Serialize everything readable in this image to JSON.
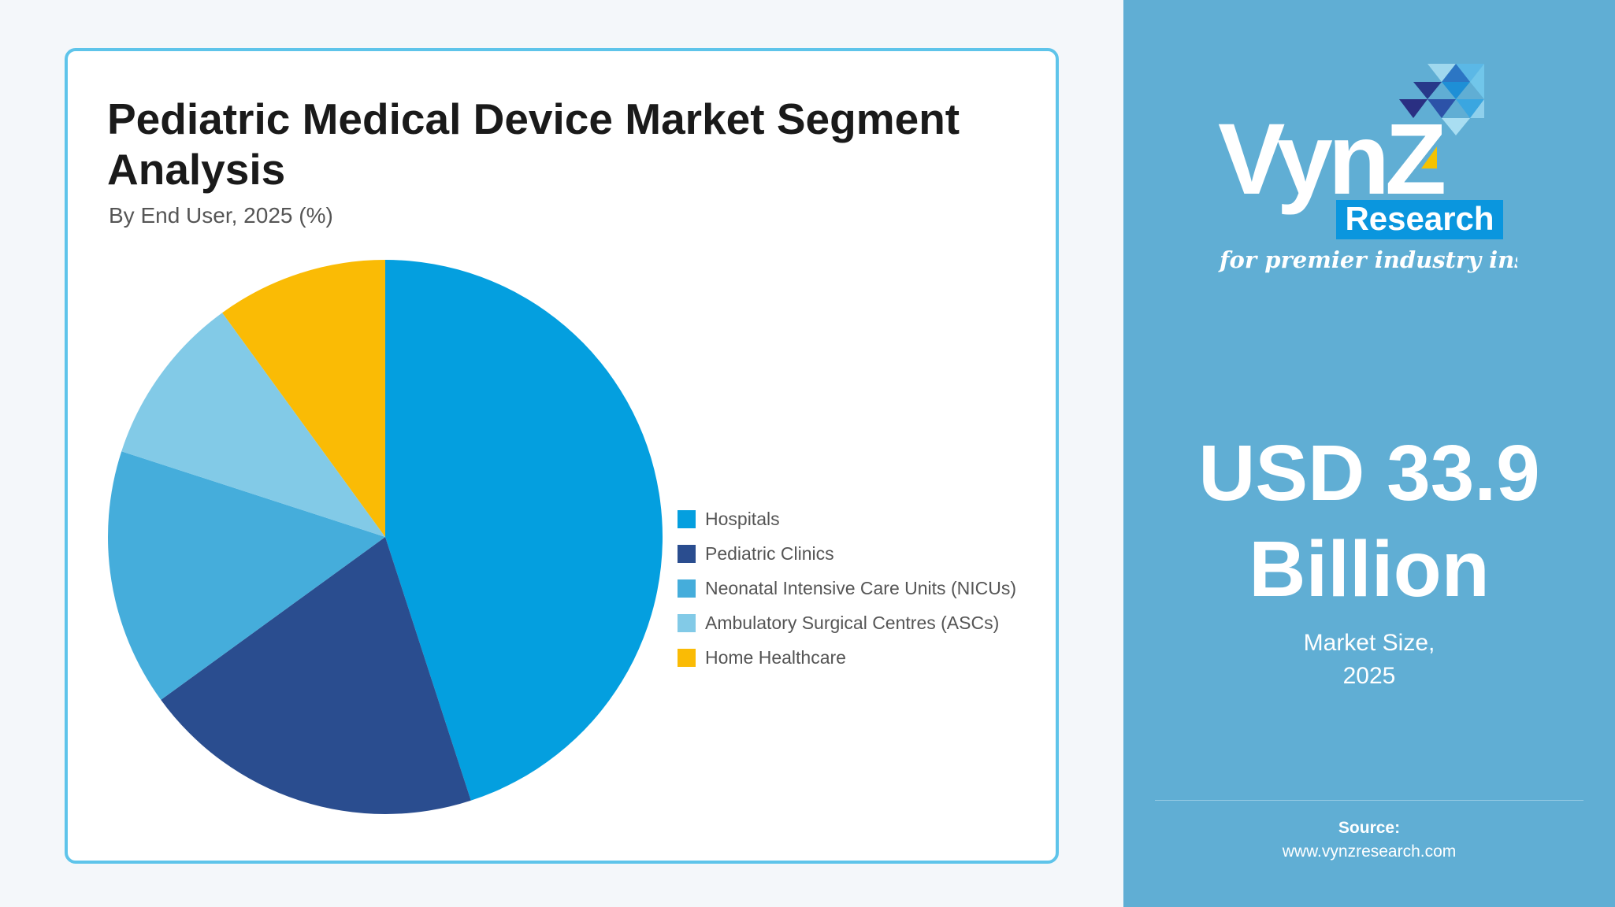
{
  "chart_data": {
    "type": "pie",
    "title": "Pediatric Medical Device Market Segment Analysis",
    "subtitle": "By End User, 2025 (%)",
    "categories": [
      "Hospitals",
      "Pediatric Clinics",
      "Neonatal Intensive Care Units (NICUs)",
      "Ambulatory Surgical Centres (ASCs)",
      "Home Healthcare"
    ],
    "values": [
      45,
      20,
      15,
      10,
      10
    ],
    "colors": [
      "#049fdf",
      "#2a4d8f",
      "#45addb",
      "#82cae7",
      "#fabb05"
    ],
    "legend_position": "right",
    "start_angle": "top, clockwise"
  },
  "brand": {
    "name": "VynZ",
    "sub": "Research",
    "tagline": "for premier industry insights"
  },
  "market": {
    "value_line1": "USD 33.9",
    "value_line2": "Billion",
    "caption_line1": "Market Size,",
    "caption_line2": "2025"
  },
  "source": {
    "label": "Source:",
    "url": "www.vynzresearch.com"
  },
  "colors": {
    "panel": "#60aed4",
    "card_border": "#5ec4ea",
    "page_background": "#f4f7fa"
  }
}
